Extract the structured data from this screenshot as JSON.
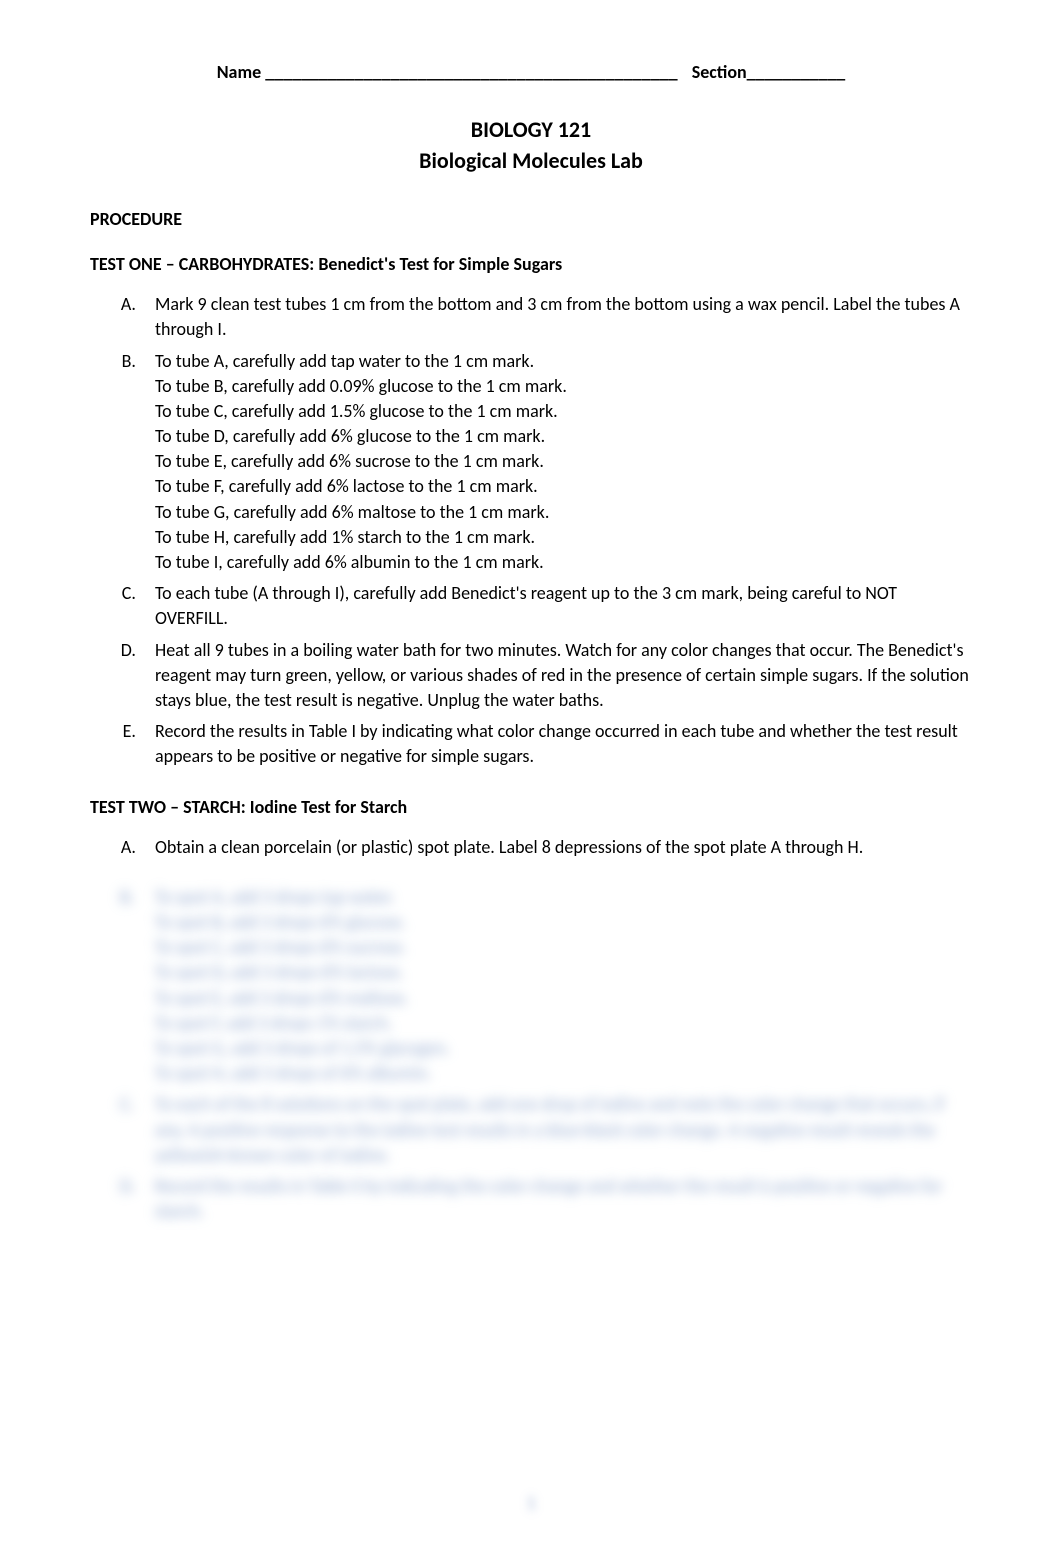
{
  "header": {
    "name_label": "Name ______________________________________________",
    "section_label": "Section___________"
  },
  "title": {
    "line1": "BIOLOGY 121",
    "line2": "Biological Molecules Lab"
  },
  "procedure_heading": "PROCEDURE",
  "test_one": {
    "heading": "TEST ONE – CARBOHYDRATES:  Benedict's Test for Simple Sugars",
    "items": {
      "A": "Mark 9 clean test tubes 1 cm from the bottom and 3 cm from the bottom using a wax pencil. Label the tubes A through I.",
      "B": {
        "first": "To tube A, carefully add tap water to the 1 cm mark.",
        "lines": [
          "To tube B, carefully add 0.09% glucose to the 1 cm mark.",
          "To tube C, carefully add 1.5% glucose to the 1 cm mark.",
          "To tube D, carefully add 6% glucose to the 1 cm mark.",
          "To tube E, carefully add 6% sucrose to the 1 cm mark.",
          "To tube F, carefully add 6% lactose to the 1 cm mark.",
          "To tube G, carefully add 6% maltose to the 1 cm mark.",
          "To tube H, carefully add 1% starch to the 1 cm mark.",
          "To tube I, carefully add 6% albumin to the 1 cm mark."
        ]
      },
      "C": "To each tube (A through I), carefully add Benedict's reagent up to the 3 cm mark, being careful to NOT OVERFILL.",
      "D": "Heat all 9 tubes in a boiling water bath for two minutes.  Watch for any color changes that occur.  The Benedict's reagent may turn green, yellow, or various shades of red in the presence of certain simple sugars.  If the solution stays blue, the test result is negative.  Unplug the water baths.",
      "E": "Record the results in Table I by indicating what color change occurred in each tube and whether the test result appears to be positive or negative for simple sugars."
    }
  },
  "test_two": {
    "heading": "TEST TWO – STARCH:  Iodine Test for Starch",
    "items": {
      "A": "Obtain a clean porcelain (or plastic) spot plate.  Label 8 depressions of the spot plate A through H."
    },
    "blurred": {
      "B": {
        "letter": "B.",
        "first": "To spot A, add 3 drops tap water.",
        "lines": [
          "To spot B, add 3 drops 6% glucose.",
          "To spot C, add 3 drops 6% sucrose.",
          "To spot D, add 3 drops 6% lactose.",
          "To spot E, add 3 drops 6% maltose.",
          "To spot F, add 3 drops 1% starch.",
          "To spot G, add 3 drops of 1.5% glycogen.",
          "To spot H, add 3 drops of 6% albumin."
        ]
      },
      "C": {
        "letter": "C.",
        "text": "To each of the 8 solutions on the spot plate, add one drop of iodine and note the color change that occurs, if any.  A positive response to the iodine test results in a blue-black color change.  A negative result reveals the yellowish-brown color of iodine."
      },
      "D": {
        "letter": "D.",
        "text": "Record the results in Table II by indicating the color change and whether the result is positive or negative for starch."
      }
    }
  },
  "page_number": "1"
}
